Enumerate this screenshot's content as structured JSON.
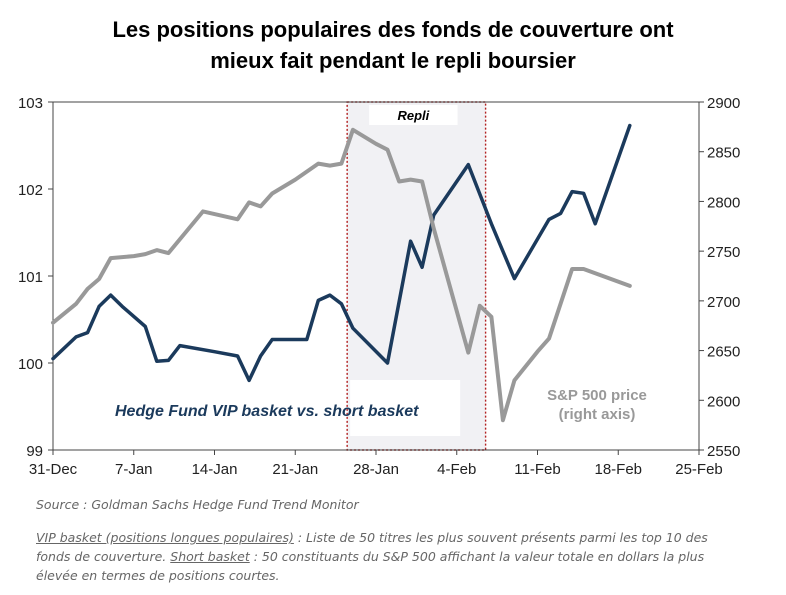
{
  "title_line1": "Les positions populaires des fonds de couverture ont",
  "title_line2": "mieux fait pendant le repli boursier",
  "source": "Source : Goldman Sachs Hedge Fund Trend Monitor",
  "note": {
    "vip_term": "VIP basket (positions longues populaires)",
    "vip_text": " : Liste de 50 titres les plus souvent présents parmi les top 10 des fonds de couverture. ",
    "short_term": "Short basket",
    "short_text": " : 50 constituants du S&P 500 affichant la valeur totale en dollars la plus élevée en termes de positions courtes."
  },
  "chart_data": {
    "type": "line",
    "x_ticks": [
      "31-Dec",
      "7-Jan",
      "14-Jan",
      "21-Jan",
      "28-Jan",
      "4-Feb",
      "11-Feb",
      "18-Feb",
      "25-Feb"
    ],
    "x_range_days": [
      0,
      56
    ],
    "left_axis": {
      "ylim": [
        99,
        103
      ],
      "ticks": [
        "99",
        "100",
        "101",
        "102",
        "103"
      ]
    },
    "right_axis": {
      "ylim": [
        2550,
        2900
      ],
      "ticks": [
        "2550",
        "2600",
        "2650",
        "2700",
        "2750",
        "2800",
        "2850",
        "2900"
      ]
    },
    "shaded_region": {
      "label": "Repli",
      "x_start_day": 25.5,
      "x_end_day": 37.5
    },
    "series": [
      {
        "name": "Hedge Fund VIP basket vs. short basket",
        "axis": "left",
        "color": "#1b3a5c",
        "points": [
          [
            0,
            100.05
          ],
          [
            2,
            100.3
          ],
          [
            3,
            100.35
          ],
          [
            4,
            100.65
          ],
          [
            5,
            100.78
          ],
          [
            6,
            100.65
          ],
          [
            8,
            100.42
          ],
          [
            9,
            100.02
          ],
          [
            10,
            100.03
          ],
          [
            11,
            100.2
          ],
          [
            14,
            100.13
          ],
          [
            16,
            100.08
          ],
          [
            17,
            99.8
          ],
          [
            18,
            100.08
          ],
          [
            19,
            100.27
          ],
          [
            21,
            100.27
          ],
          [
            22,
            100.27
          ],
          [
            23,
            100.72
          ],
          [
            24,
            100.78
          ],
          [
            25,
            100.68
          ],
          [
            26,
            100.4
          ],
          [
            29,
            100.0
          ],
          [
            31,
            101.4
          ],
          [
            32,
            101.1
          ],
          [
            33,
            101.7
          ],
          [
            36,
            102.28
          ],
          [
            38,
            101.6
          ],
          [
            40,
            100.97
          ],
          [
            43,
            101.65
          ],
          [
            44,
            101.72
          ],
          [
            45,
            101.97
          ],
          [
            46,
            101.95
          ],
          [
            47,
            101.6
          ],
          [
            50,
            102.73
          ]
        ]
      },
      {
        "name": "S&P 500 price (right axis)",
        "axis": "right",
        "color": "#999999",
        "points": [
          [
            0,
            2678
          ],
          [
            2,
            2697
          ],
          [
            3,
            2712
          ],
          [
            4,
            2722
          ],
          [
            5,
            2743
          ],
          [
            7,
            2745
          ],
          [
            8,
            2747
          ],
          [
            9,
            2751
          ],
          [
            10,
            2748
          ],
          [
            13,
            2790
          ],
          [
            16,
            2782
          ],
          [
            17,
            2799
          ],
          [
            18,
            2795
          ],
          [
            19,
            2808
          ],
          [
            21,
            2822
          ],
          [
            23,
            2838
          ],
          [
            24,
            2836
          ],
          [
            25,
            2838
          ],
          [
            26,
            2872
          ],
          [
            28,
            2858
          ],
          [
            29,
            2852
          ],
          [
            30,
            2820
          ],
          [
            31,
            2822
          ],
          [
            32,
            2820
          ],
          [
            33,
            2773
          ],
          [
            36,
            2648
          ],
          [
            37,
            2695
          ],
          [
            38,
            2684
          ],
          [
            39,
            2580
          ],
          [
            40,
            2620
          ],
          [
            42,
            2649
          ],
          [
            43,
            2662
          ],
          [
            45,
            2732
          ],
          [
            46,
            2732
          ],
          [
            50,
            2715
          ]
        ]
      }
    ],
    "annotations": [
      {
        "text": "Hedge Fund VIP basket vs. short basket",
        "color": "#1b3a5c"
      },
      {
        "text_line1": "S&P 500 price",
        "text_line2": "(right axis)",
        "color": "#999999"
      }
    ]
  }
}
